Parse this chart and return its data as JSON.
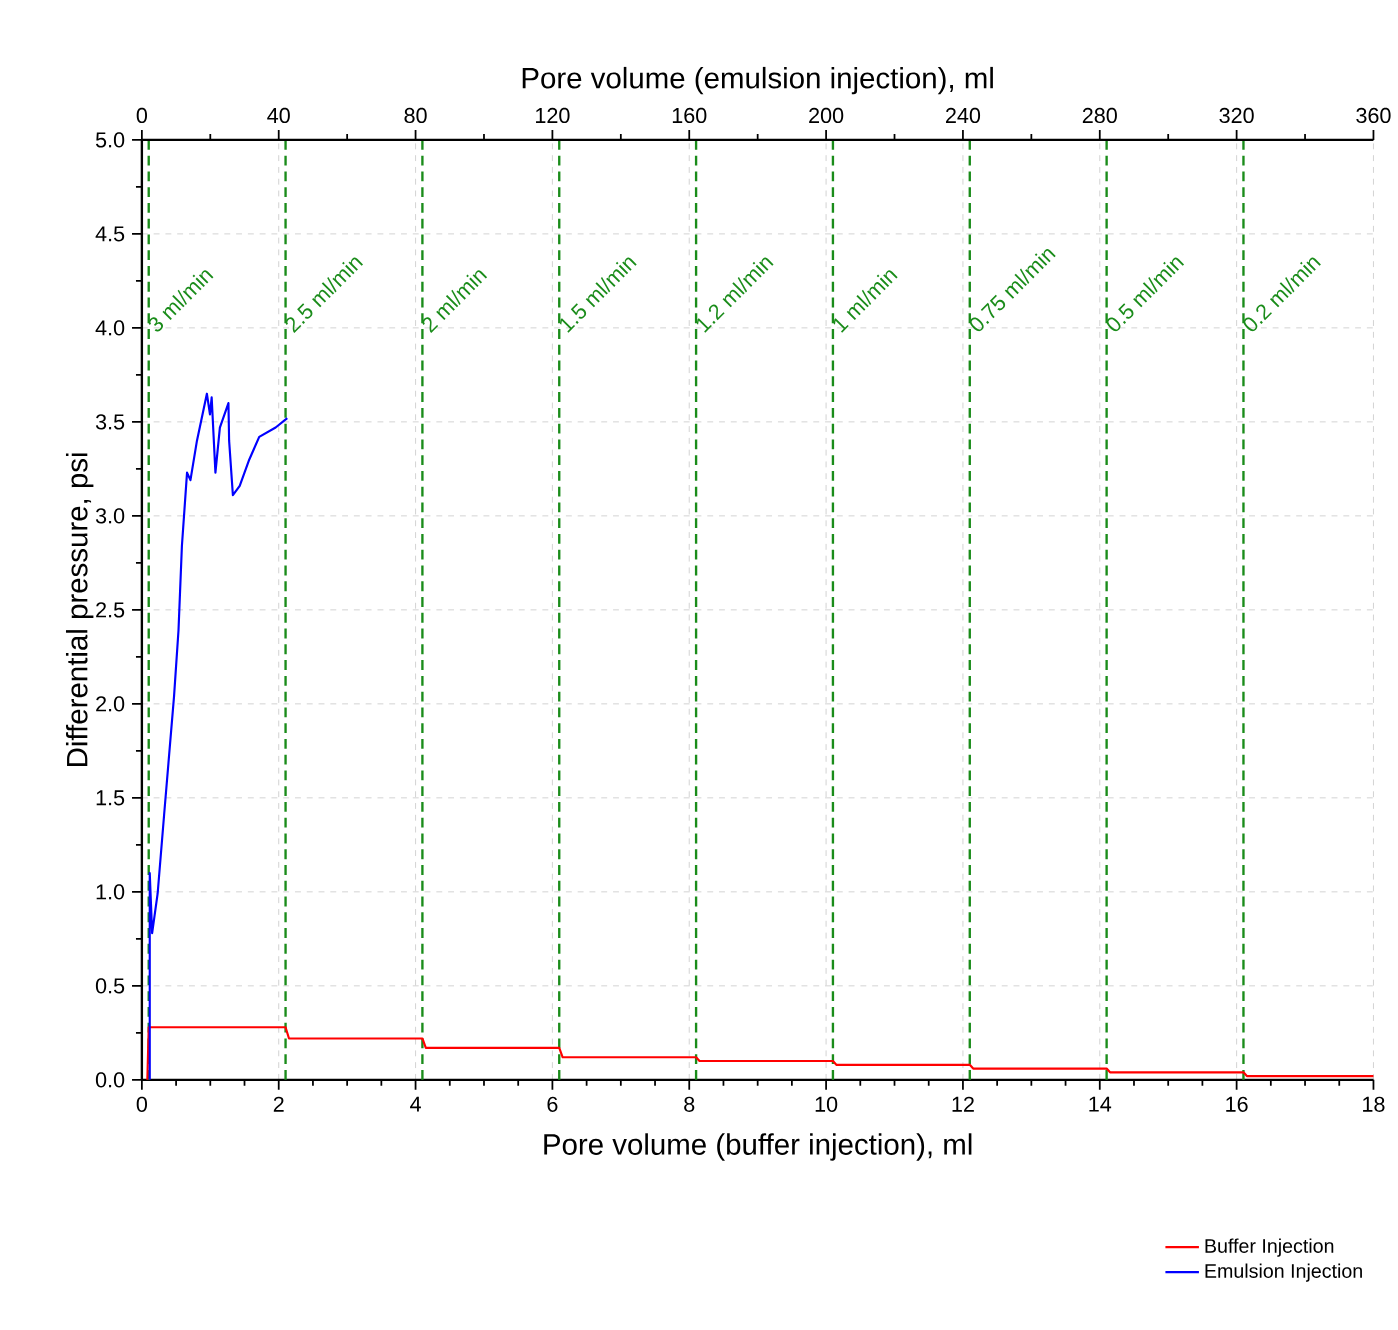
{
  "chart_data": {
    "type": "line",
    "xlabel": "Pore volume (buffer injection), ml",
    "x2label": "Pore volume (emulsion injection), ml",
    "ylabel": "Differential pressure, psi",
    "xlim": [
      0,
      18
    ],
    "xticks": [
      0,
      2,
      4,
      6,
      8,
      10,
      12,
      14,
      16,
      18
    ],
    "x2lim": [
      0,
      360
    ],
    "x2ticks": [
      0,
      40,
      80,
      120,
      160,
      200,
      240,
      280,
      320,
      360
    ],
    "ylim": [
      0,
      5
    ],
    "yticks": [
      {
        "value": 0,
        "label": "0.0"
      },
      {
        "value": 0.5,
        "label": "0.5"
      },
      {
        "value": 1,
        "label": "1.0"
      },
      {
        "value": 1.5,
        "label": "1.5"
      },
      {
        "value": 2,
        "label": "2.0"
      },
      {
        "value": 2.5,
        "label": "2.5"
      },
      {
        "value": 3,
        "label": "3.0"
      },
      {
        "value": 3.5,
        "label": "3.5"
      },
      {
        "value": 4,
        "label": "4.0"
      },
      {
        "value": 4.5,
        "label": "4.5"
      },
      {
        "value": 5,
        "label": "5.0"
      }
    ],
    "grid": true,
    "legend": "bottom right",
    "marker": "none",
    "line_style": "solid",
    "series": [
      {
        "name": "Buffer Injection",
        "color": "#ff0000",
        "x": [
          0.08,
          0.1,
          2.1,
          2.15,
          4.1,
          4.15,
          6.1,
          6.15,
          8.1,
          8.15,
          10.1,
          10.15,
          12.1,
          12.15,
          14.1,
          14.15,
          16.1,
          16.15,
          18
        ],
        "values": [
          0,
          0.28,
          0.28,
          0.22,
          0.22,
          0.17,
          0.17,
          0.12,
          0.12,
          0.1,
          0.1,
          0.08,
          0.08,
          0.06,
          0.06,
          0.04,
          0.04,
          0.02,
          0.02
        ]
      },
      {
        "name": "Emulsion Injection",
        "color": "#0000ff",
        "axis": "x2",
        "x": [
          2.3,
          2.3,
          3.0,
          4.6,
          6.5,
          9.4,
          10.7,
          11.7,
          13.2,
          14.2,
          16.1,
          19.0,
          19.9,
          20.4,
          21.5,
          22.8,
          25.3,
          25.5,
          26.6,
          28.6,
          31.4,
          34.3,
          39.1,
          42.5
        ],
        "values": [
          0,
          1.1,
          0.78,
          0.99,
          1.41,
          2.04,
          2.39,
          2.84,
          3.23,
          3.19,
          3.4,
          3.65,
          3.54,
          3.63,
          3.23,
          3.47,
          3.6,
          3.4,
          3.11,
          3.16,
          3.3,
          3.42,
          3.47,
          3.52
        ]
      }
    ],
    "ref_lines": [
      {
        "axis": "x",
        "value": 0.1,
        "label": "3 ml/min",
        "color": "#1a8c1a",
        "line_style": "dashed"
      },
      {
        "axis": "x",
        "value": 2.1,
        "label": "2.5 ml/min",
        "color": "#1a8c1a",
        "line_style": "dashed"
      },
      {
        "axis": "x",
        "value": 4.1,
        "label": "2 ml/min",
        "color": "#1a8c1a",
        "line_style": "dashed"
      },
      {
        "axis": "x",
        "value": 6.1,
        "label": "1.5 ml/min",
        "color": "#1a8c1a",
        "line_style": "dashed"
      },
      {
        "axis": "x",
        "value": 8.1,
        "label": "1.2 ml/min",
        "color": "#1a8c1a",
        "line_style": "dashed"
      },
      {
        "axis": "x",
        "value": 10.1,
        "label": "1 ml/min",
        "color": "#1a8c1a",
        "line_style": "dashed"
      },
      {
        "axis": "x",
        "value": 12.1,
        "label": "0.75 ml/min",
        "color": "#1a8c1a",
        "line_style": "dashed"
      },
      {
        "axis": "x",
        "value": 14.1,
        "label": "0.5 ml/min",
        "color": "#1a8c1a",
        "line_style": "dashed"
      },
      {
        "axis": "x",
        "value": 16.1,
        "label": "0.2 ml/min",
        "color": "#1a8c1a",
        "line_style": "dashed"
      }
    ]
  }
}
